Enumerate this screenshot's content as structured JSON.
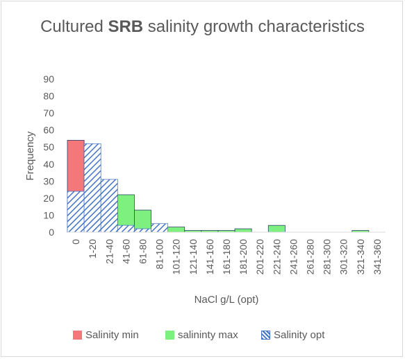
{
  "chart_data": {
    "type": "bar",
    "title_prefix": "Cultured ",
    "title_bold": "SRB",
    "title_suffix": " salinity growth characteristics",
    "xlabel": "NaCl g/L (opt)",
    "ylabel": "Frequency",
    "ylim": [
      0,
      90
    ],
    "yticks": [
      0,
      10,
      20,
      30,
      40,
      50,
      60,
      70,
      80,
      90
    ],
    "grid": false,
    "legend_position": "bottom",
    "categories": [
      "0",
      "1-20",
      "21-40",
      "41-60",
      "61-80",
      "81-100",
      "101-120",
      "121-140",
      "141-160",
      "161-180",
      "181-200",
      "201-220",
      "221-240",
      "241-260",
      "261-280",
      "281-300",
      "301-320",
      "321-340",
      "341-360"
    ],
    "series": [
      {
        "name": "Salinity min",
        "color": "#f4787a",
        "values": [
          54,
          0,
          0,
          0,
          0,
          0,
          0,
          0,
          0,
          0,
          0,
          0,
          0,
          0,
          0,
          0,
          0,
          0,
          0
        ]
      },
      {
        "name": "salininty max",
        "color": "#7ef07f",
        "values": [
          0,
          0,
          0,
          22,
          13,
          4,
          3,
          1,
          1,
          1,
          2,
          0,
          4,
          0,
          0,
          0,
          0,
          1,
          0
        ]
      },
      {
        "name": "Salinity opt",
        "color": "#4472c4",
        "values": [
          24,
          52,
          31,
          4,
          2,
          5,
          0,
          0,
          0,
          0,
          0,
          0,
          0,
          0,
          0,
          0,
          0,
          0,
          0
        ]
      }
    ]
  }
}
